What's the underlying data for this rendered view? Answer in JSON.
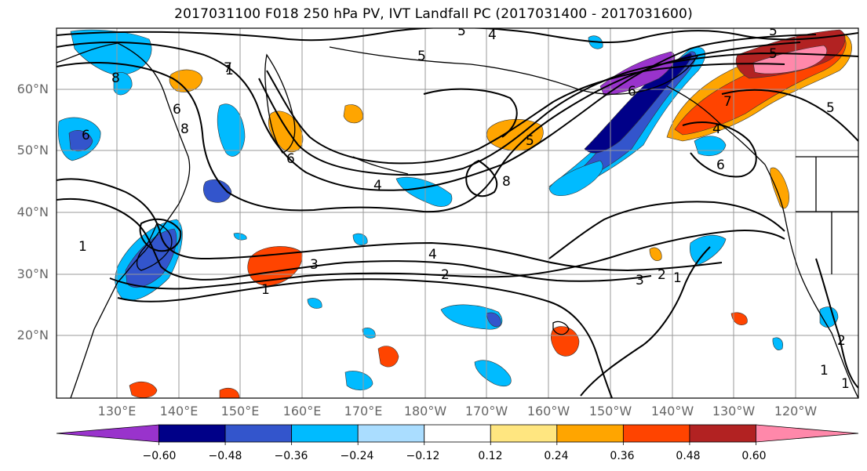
{
  "title": "2017031100 F018 250 hPa PV, IVT Landfall PC (2017031400 - 2017031600)",
  "lat_labels": [
    "60°N",
    "50°N",
    "40°N",
    "30°N",
    "20°N"
  ],
  "lon_labels": [
    "130°E",
    "140°E",
    "150°E",
    "160°E",
    "170°E",
    "180°W",
    "170°W",
    "160°W",
    "150°W",
    "140°W",
    "130°W",
    "120°W"
  ],
  "colorbar": {
    "colors": [
      "#9933cc",
      "#000088",
      "#3355cc",
      "#00bbff",
      "#aaddff",
      "#ffffff",
      "#ffe680",
      "#ffa500",
      "#ff4400",
      "#b22222",
      "#ff88aa"
    ],
    "tick_labels": [
      "−0.60",
      "−0.48",
      "−0.36",
      "−0.24",
      "−0.12",
      "0.12",
      "0.24",
      "0.36",
      "0.48",
      "0.60"
    ]
  },
  "contour_labels": [
    "8",
    "6",
    "7",
    "5",
    "4",
    "5",
    "1",
    "8",
    "6",
    "6",
    "4",
    "6",
    "5",
    "8",
    "5",
    "7",
    "5",
    "6",
    "4",
    "5",
    "3",
    "2",
    "4",
    "1",
    "3",
    "2",
    "1",
    "1",
    "1",
    "2",
    "1"
  ]
}
